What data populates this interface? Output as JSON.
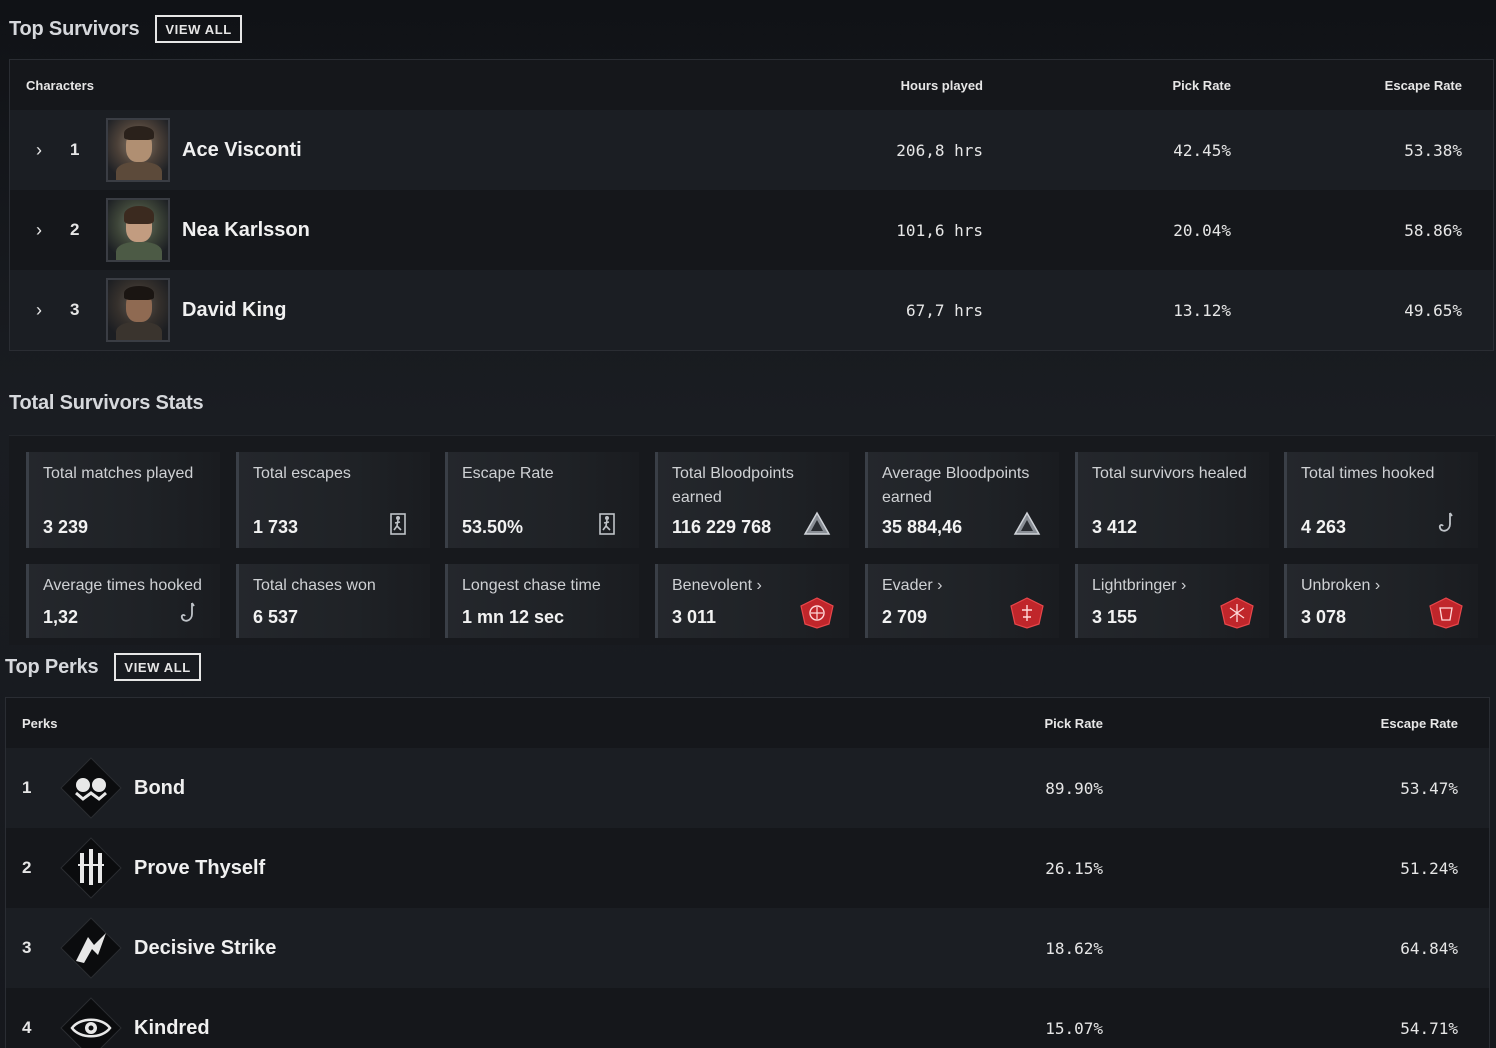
{
  "top_survivors": {
    "title": "Top Survivors",
    "view_all": "VIEW ALL",
    "headers": {
      "characters": "Characters",
      "hours": "Hours played",
      "pick": "Pick Rate",
      "escape": "Escape Rate"
    },
    "rows": [
      {
        "rank": "1",
        "name": "Ace Visconti",
        "hours": "206,8 hrs",
        "pick": "42.45%",
        "escape": "53.38%"
      },
      {
        "rank": "2",
        "name": "Nea Karlsson",
        "hours": "101,6 hrs",
        "pick": "20.04%",
        "escape": "58.86%"
      },
      {
        "rank": "3",
        "name": "David King",
        "hours": "67,7 hrs",
        "pick": "13.12%",
        "escape": "49.65%"
      }
    ]
  },
  "total_stats": {
    "title": "Total Survivors Stats",
    "cards": [
      {
        "label": "Total matches played",
        "value": "3 239",
        "icon": "none"
      },
      {
        "label": "Total escapes",
        "value": "1 733",
        "icon": "exit-icon"
      },
      {
        "label": "Escape Rate",
        "value": "53.50%",
        "icon": "exit-icon"
      },
      {
        "label": "Total Bloodpoints earned",
        "value": "116 229 768",
        "icon": "bloodpoints-icon"
      },
      {
        "label": "Average Bloodpoints earned",
        "value": "35 884,46",
        "icon": "bloodpoints-icon"
      },
      {
        "label": "Total survivors healed",
        "value": "3 412",
        "icon": "none"
      },
      {
        "label": "Total times hooked",
        "value": "4 263",
        "icon": "hook-icon"
      },
      {
        "label": "Average times hooked",
        "value": "1,32",
        "icon": "hook-icon"
      },
      {
        "label": "Total chases won",
        "value": "6 537",
        "icon": "none"
      },
      {
        "label": "Longest chase time",
        "value": "1 mn 12 sec",
        "icon": "none"
      },
      {
        "label": "Benevolent",
        "value": "3 011",
        "icon": "emblem-badge-icon"
      },
      {
        "label": "Evader",
        "value": "2 709",
        "icon": "emblem-badge-icon"
      },
      {
        "label": "Lightbringer",
        "value": "3 155",
        "icon": "emblem-badge-icon"
      },
      {
        "label": "Unbroken",
        "value": "3 078",
        "icon": "emblem-badge-icon"
      }
    ],
    "chevron": "›"
  },
  "top_perks": {
    "title": "Top Perks",
    "view_all": "VIEW ALL",
    "headers": {
      "perks": "Perks",
      "pick": "Pick Rate",
      "escape": "Escape Rate"
    },
    "rows": [
      {
        "rank": "1",
        "name": "Bond",
        "pick": "89.90%",
        "escape": "53.47%"
      },
      {
        "rank": "2",
        "name": "Prove Thyself",
        "pick": "26.15%",
        "escape": "51.24%"
      },
      {
        "rank": "3",
        "name": "Decisive Strike",
        "pick": "18.62%",
        "escape": "64.84%"
      },
      {
        "rank": "4",
        "name": "Kindred",
        "pick": "15.07%",
        "escape": "54.71%"
      }
    ]
  },
  "colors": {
    "accent_red": "#c0262b",
    "bg": "#16181d",
    "row_alt": "#1b1e23"
  }
}
